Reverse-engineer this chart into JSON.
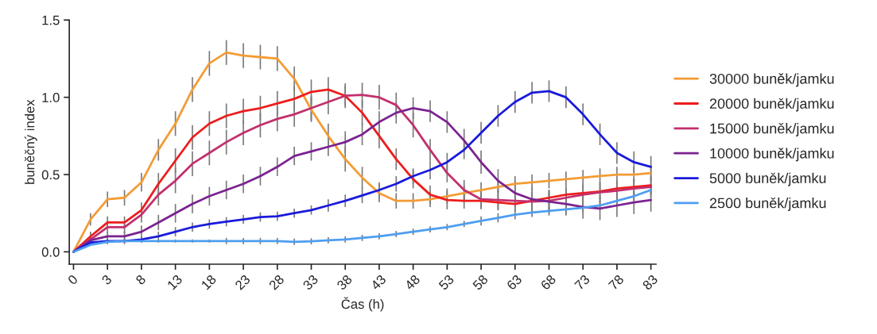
{
  "chart_data": {
    "type": "line",
    "xlabel": "Čas (h)",
    "ylabel": "buněčný index",
    "categories": [
      "0",
      null,
      "3",
      null,
      "8",
      null,
      "13",
      null,
      "18",
      null,
      "23",
      null,
      "28",
      null,
      "33",
      null,
      "38",
      null,
      "43",
      null,
      "48",
      null,
      "53",
      null,
      "58",
      null,
      "63",
      null,
      "68",
      null,
      "73",
      null,
      "78",
      null,
      "83"
    ],
    "ylim": [
      -0.08,
      1.5
    ],
    "yticks": [
      {
        "value": 0,
        "label": "0.0"
      },
      {
        "value": 0.5,
        "label": "0.5"
      },
      {
        "value": 1,
        "label": "1.0"
      },
      {
        "value": 1.5,
        "label": "1.5"
      }
    ],
    "grid": false,
    "legend": "right",
    "marker": "none",
    "line_style": "solid",
    "series": [
      {
        "name": "30000 buněk/jamku",
        "color": "#f39c35",
        "values": [
          0,
          0.21,
          0.34,
          0.35,
          0.45,
          0.66,
          0.83,
          1.05,
          1.22,
          1.29,
          1.27,
          1.26,
          1.25,
          1.12,
          0.92,
          0.75,
          0.6,
          0.48,
          0.38,
          0.33,
          0.33,
          0.34,
          0.36,
          0.38,
          0.4,
          0.42,
          0.44,
          0.45,
          0.46,
          0.47,
          0.48,
          0.49,
          0.5,
          0.5,
          0.51
        ],
        "errors": [
          null,
          0.04,
          0.05,
          0.05,
          0.06,
          0.07,
          0.08,
          0.08,
          0.08,
          0.08,
          0.08,
          0.08,
          0.08,
          0.08,
          0.08,
          0.08,
          0.08,
          0.07,
          0.06,
          0.05,
          0.05,
          0.05,
          0.05,
          0.05,
          0.05,
          0.05,
          0.05,
          0.05,
          0.05,
          0.05,
          0.05,
          0.05,
          0.05,
          0.05,
          0.05
        ]
      },
      {
        "name": "20000 buněk/jamku",
        "color": "#ee1c1c",
        "values": [
          0,
          0.1,
          0.19,
          0.19,
          0.27,
          0.44,
          0.59,
          0.74,
          0.83,
          0.88,
          0.91,
          0.93,
          0.96,
          0.99,
          1.035,
          1.05,
          1.01,
          0.9,
          0.75,
          0.6,
          0.47,
          0.37,
          0.335,
          0.33,
          0.33,
          0.32,
          0.31,
          0.33,
          0.35,
          0.37,
          0.38,
          0.39,
          0.41,
          0.42,
          0.43
        ],
        "errors": [
          null,
          0.03,
          0.04,
          0.04,
          0.05,
          0.07,
          0.08,
          0.08,
          0.08,
          0.08,
          0.08,
          0.08,
          0.08,
          0.08,
          0.08,
          0.08,
          0.08,
          0.08,
          0.08,
          0.07,
          0.06,
          0.06,
          0.06,
          0.05,
          0.05,
          0.05,
          0.05,
          0.05,
          0.05,
          0.05,
          0.05,
          0.05,
          0.05,
          0.05,
          0.05
        ]
      },
      {
        "name": "15000 buněk/jamku",
        "color": "#c2306e",
        "values": [
          0,
          0.08,
          0.16,
          0.16,
          0.24,
          0.37,
          0.46,
          0.57,
          0.64,
          0.71,
          0.77,
          0.82,
          0.86,
          0.89,
          0.93,
          0.97,
          1.01,
          1.015,
          1.0,
          0.95,
          0.82,
          0.66,
          0.51,
          0.4,
          0.34,
          0.335,
          0.33,
          0.325,
          0.33,
          0.35,
          0.37,
          0.385,
          0.395,
          0.41,
          0.42
        ],
        "errors": [
          null,
          0.03,
          0.04,
          0.04,
          0.05,
          0.07,
          0.08,
          0.08,
          0.08,
          0.08,
          0.08,
          0.08,
          0.08,
          0.08,
          0.08,
          0.08,
          0.065,
          0.08,
          0.08,
          0.08,
          0.08,
          0.07,
          0.06,
          0.065,
          0.065,
          0.065,
          0.065,
          0.065,
          0.065,
          0.065,
          0.065,
          0.065,
          0.065,
          0.065,
          0.065
        ]
      },
      {
        "name": "10000 buněk/jamku",
        "color": "#7b2390",
        "values": [
          0,
          0.075,
          0.1,
          0.1,
          0.13,
          0.19,
          0.25,
          0.31,
          0.36,
          0.4,
          0.44,
          0.49,
          0.55,
          0.62,
          0.65,
          0.68,
          0.71,
          0.76,
          0.84,
          0.9,
          0.93,
          0.91,
          0.84,
          0.72,
          0.58,
          0.46,
          0.38,
          0.34,
          0.325,
          0.31,
          0.29,
          0.28,
          0.3,
          0.32,
          0.335
        ],
        "errors": [
          null,
          null,
          0.03,
          0.03,
          0.04,
          0.05,
          0.06,
          0.06,
          0.06,
          0.06,
          0.06,
          0.06,
          0.06,
          0.06,
          0.06,
          0.06,
          0.07,
          0.07,
          0.07,
          0.07,
          0.07,
          0.07,
          0.07,
          0.075,
          0.075,
          0.075,
          0.075,
          0.075,
          0.075,
          0.075,
          0.075,
          0.075,
          0.075,
          0.075,
          0.075
        ]
      },
      {
        "name": "5000 buněk/jamku",
        "color": "#1a1adc",
        "values": [
          0,
          0.06,
          0.07,
          0.07,
          0.08,
          0.1,
          0.13,
          0.16,
          0.18,
          0.195,
          0.21,
          0.225,
          0.23,
          0.25,
          0.27,
          0.3,
          0.33,
          0.365,
          0.4,
          0.44,
          0.49,
          0.53,
          0.58,
          0.66,
          0.77,
          0.88,
          0.97,
          1.03,
          1.04,
          1.0,
          0.89,
          0.76,
          0.64,
          0.58,
          0.55
        ],
        "errors": [
          null,
          null,
          0.02,
          0.02,
          0.02,
          0.03,
          0.03,
          0.03,
          0.03,
          0.03,
          0.03,
          0.03,
          0.03,
          0.03,
          0.03,
          0.04,
          0.04,
          0.05,
          0.05,
          0.05,
          0.05,
          0.06,
          0.06,
          0.06,
          0.07,
          0.07,
          0.07,
          0.07,
          0.07,
          0.07,
          0.07,
          0.07,
          0.07,
          0.07,
          0.07
        ]
      },
      {
        "name": "2500 buněk/jamku",
        "color": "#4d9ef0",
        "values": [
          0,
          0.045,
          0.065,
          0.07,
          0.07,
          0.07,
          0.07,
          0.07,
          0.07,
          0.07,
          0.07,
          0.07,
          0.07,
          0.065,
          0.068,
          0.075,
          0.08,
          0.09,
          0.1,
          0.115,
          0.13,
          0.145,
          0.16,
          0.18,
          0.2,
          0.22,
          0.24,
          0.255,
          0.265,
          0.275,
          0.285,
          0.3,
          0.33,
          0.36,
          0.4
        ],
        "errors": [
          null,
          null,
          0.01,
          0.01,
          0.01,
          0.01,
          0.01,
          0.01,
          0.01,
          0.02,
          0.02,
          0.02,
          0.02,
          0.02,
          0.02,
          0.02,
          0.02,
          0.02,
          0.02,
          0.02,
          0.02,
          0.02,
          0.02,
          0.02,
          0.03,
          0.03,
          0.03,
          0.03,
          0.03,
          0.03,
          0.03,
          0.03,
          0.03,
          0.03,
          0.03
        ]
      }
    ]
  }
}
